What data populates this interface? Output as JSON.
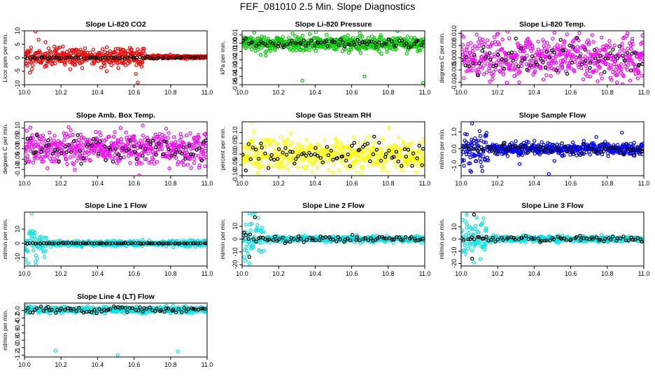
{
  "title": "FEF_081010  2.5 Min. Slope Diagnostics",
  "chart_data": [
    {
      "type": "scatter",
      "title": "Slope Li-820 CO2",
      "ylabel": "Licor ppm per min.",
      "xlim": [
        10.0,
        11.0
      ],
      "ylim": [
        -10,
        10
      ],
      "xticks": [
        10.0,
        10.2,
        10.4,
        10.6,
        10.8,
        11.0
      ],
      "xtick_labels": [
        "10.0",
        "10.2",
        "10.4",
        "10.6",
        "10.8",
        "11.0"
      ],
      "yticks": [
        -10,
        -5,
        0,
        5,
        10
      ],
      "ytick_labels": [
        "-10",
        "-5",
        "0",
        "5",
        "10"
      ],
      "series": [
        {
          "name": "all",
          "color": "#ff0000",
          "seed": 11,
          "n": 520,
          "x_range": [
            10.0,
            11.0
          ],
          "center": 0.3,
          "spread": 1.8,
          "scatter_until": 10.66,
          "tail_spread": 0.3,
          "outliers": [
            [
              10.06,
              9.8
            ],
            [
              10.62,
              -9.2
            ],
            [
              10.61,
              -6.0
            ],
            [
              10.45,
              -5.0
            ],
            [
              10.03,
              -5.5
            ]
          ]
        },
        {
          "name": "selected",
          "color": "#000000",
          "seed": 12,
          "n": 75,
          "x_range": [
            10.0,
            11.0
          ],
          "center": 0.0,
          "spread": 0.25
        }
      ]
    },
    {
      "type": "scatter",
      "title": "Slope Li-820 Pressure",
      "ylabel": "kPa per min.",
      "xlim": [
        10.0,
        11.0
      ],
      "ylim": [
        -0.05,
        0.015
      ],
      "xticks": [
        10.0,
        10.2,
        10.4,
        10.6,
        10.8,
        11.0
      ],
      "xtick_labels": [
        "10.0",
        "10.2",
        "10.4",
        "10.6",
        "10.8",
        "11.0"
      ],
      "yticks": [
        -0.05,
        -0.04,
        -0.03,
        -0.02,
        -0.01,
        0.0,
        0.01
      ],
      "ytick_labels": [
        "-0.05",
        "-0.04",
        "-0.03",
        "-0.02",
        "-0.01",
        "0.00",
        "0.01"
      ],
      "series": [
        {
          "name": "all",
          "color": "#00cc00",
          "seed": 21,
          "n": 520,
          "x_range": [
            10.0,
            11.0
          ],
          "center": 0.0,
          "spread": 0.0045,
          "outliers": [
            [
              10.33,
              -0.045
            ],
            [
              10.67,
              -0.04
            ],
            [
              10.99,
              -0.048
            ],
            [
              10.13,
              -0.015
            ]
          ]
        },
        {
          "name": "selected",
          "color": "#000000",
          "seed": 22,
          "n": 75,
          "x_range": [
            10.0,
            11.0
          ],
          "center": 0.0,
          "spread": 0.0025
        }
      ]
    },
    {
      "type": "scatter",
      "title": "Slope Li-820 Temp.",
      "ylabel": "degrees C per min.",
      "xlim": [
        10.0,
        11.0
      ],
      "ylim": [
        -0.011,
        0.011
      ],
      "xticks": [
        10.0,
        10.2,
        10.4,
        10.6,
        10.8,
        11.0
      ],
      "xtick_labels": [
        "10.0",
        "10.2",
        "10.4",
        "10.6",
        "10.8",
        "11.0"
      ],
      "yticks": [
        -0.01,
        -0.005,
        0.0,
        0.005,
        0.01
      ],
      "ytick_labels": [
        "-0.010",
        "-0.005",
        "0.000",
        "0.005",
        "0.010"
      ],
      "series": [
        {
          "name": "all",
          "color": "#ff00ff",
          "seed": 31,
          "n": 520,
          "x_range": [
            10.0,
            11.0
          ],
          "center": 0.0,
          "spread": 0.0045,
          "outliers": []
        },
        {
          "name": "selected",
          "color": "#000000",
          "seed": 32,
          "n": 75,
          "x_range": [
            10.0,
            11.0
          ],
          "center": 0.0,
          "spread": 0.004
        }
      ]
    },
    {
      "type": "scatter",
      "title": "Slope Amb. Box Temp.",
      "ylabel": "degrees C per min.",
      "xlim": [
        10.0,
        11.0
      ],
      "ylim": [
        -0.13,
        0.13
      ],
      "xticks": [
        10.0,
        10.2,
        10.4,
        10.6,
        10.8,
        11.0
      ],
      "xtick_labels": [
        "10.0",
        "10.2",
        "10.4",
        "10.6",
        "10.8",
        "11.0"
      ],
      "yticks": [
        -0.1,
        -0.05,
        0.0,
        0.05,
        0.1
      ],
      "ytick_labels": [
        "-0.10",
        "-0.05",
        "0.00",
        "0.05",
        "0.10"
      ],
      "series": [
        {
          "name": "all",
          "color": "#ff00ff",
          "seed": 41,
          "n": 520,
          "x_range": [
            10.0,
            11.0
          ],
          "center": 0.0,
          "spread": 0.04,
          "outliers": []
        },
        {
          "name": "selected",
          "color": "#000000",
          "seed": 42,
          "n": 75,
          "x_range": [
            10.0,
            11.0
          ],
          "center": 0.0,
          "spread": 0.035
        }
      ]
    },
    {
      "type": "scatter",
      "title": "Slope Gas Stream RH",
      "ylabel": "percent per min.",
      "xlim": [
        10.0,
        11.0
      ],
      "ylim": [
        -0.1,
        0.15
      ],
      "xticks": [
        10.0,
        10.2,
        10.4,
        10.6,
        10.8,
        11.0
      ],
      "xtick_labels": [
        "10.0",
        "10.2",
        "10.4",
        "10.6",
        "10.8",
        "11.0"
      ],
      "yticks": [
        -0.1,
        -0.05,
        0.0,
        0.05,
        0.1
      ],
      "ytick_labels": [
        "-0.10",
        "-0.05",
        "0.00",
        "0.05",
        "0.10"
      ],
      "series": [
        {
          "name": "all",
          "color": "#ffff00",
          "seed": 51,
          "n": 520,
          "x_range": [
            10.0,
            11.0
          ],
          "center": 0.0,
          "spread": 0.035,
          "outliers": [
            [
              10.05,
              0.145
            ]
          ]
        },
        {
          "name": "selected",
          "color": "#000000",
          "seed": 52,
          "n": 75,
          "x_range": [
            10.0,
            11.0
          ],
          "center": 0.0,
          "spread": 0.03
        }
      ]
    },
    {
      "type": "scatter",
      "title": "Slope Sample Flow",
      "ylabel": "ml/min per min.",
      "xlim": [
        10.0,
        11.0
      ],
      "ylim": [
        -1.6,
        1.6
      ],
      "xticks": [
        10.0,
        10.2,
        10.4,
        10.6,
        10.8,
        11.0
      ],
      "xtick_labels": [
        "10.0",
        "10.2",
        "10.4",
        "10.6",
        "10.8",
        "11.0"
      ],
      "yticks": [
        -1.0,
        0.0,
        1.0
      ],
      "ytick_labels": [
        "-1.0",
        "0.0",
        "1.0"
      ],
      "series": [
        {
          "name": "all",
          "color": "#0000ff",
          "seed": 61,
          "n": 520,
          "x_range": [
            10.0,
            11.0
          ],
          "center": 0.0,
          "spread": 0.18,
          "scatter_until": 10.15,
          "early_spread": 0.6,
          "outliers": [
            [
              10.06,
              1.5
            ],
            [
              10.05,
              -1.3
            ],
            [
              10.48,
              -1.5
            ],
            [
              10.32,
              -0.9
            ],
            [
              10.88,
              0.95
            ],
            [
              10.74,
              0.7
            ]
          ]
        },
        {
          "name": "selected",
          "color": "#000000",
          "seed": 62,
          "n": 75,
          "x_range": [
            10.0,
            11.0
          ],
          "center": 0.0,
          "spread": 0.15
        }
      ]
    },
    {
      "type": "scatter",
      "title": "Slope Line 1 Flow",
      "ylabel": "ml/min per min.",
      "xlim": [
        10.0,
        11.0
      ],
      "ylim": [
        -16,
        22
      ],
      "xticks": [
        10.0,
        10.2,
        10.4,
        10.6,
        10.8,
        11.0
      ],
      "xtick_labels": [
        "10.0",
        "10.2",
        "10.4",
        "10.6",
        "10.8",
        "11.0"
      ],
      "yticks": [
        -10,
        0,
        10
      ],
      "ytick_labels": [
        "-10",
        "0",
        "10"
      ],
      "series": [
        {
          "name": "all",
          "color": "#00e5e5",
          "seed": 71,
          "n": 480,
          "x_range": [
            10.0,
            11.0
          ],
          "center": 0.0,
          "spread": 0.9,
          "scatter_until": 10.12,
          "early_spread": 6.0,
          "outliers": [
            [
              10.04,
              21
            ],
            [
              10.02,
              -14
            ],
            [
              10.06,
              -13
            ]
          ]
        },
        {
          "name": "selected",
          "color": "#000000",
          "seed": 72,
          "n": 80,
          "x_range": [
            10.0,
            11.0
          ],
          "center": 0.0,
          "spread": 0.15
        }
      ]
    },
    {
      "type": "scatter",
      "title": "Slope Line 2 Flow",
      "ylabel": "ml/min per min.",
      "xlim": [
        10.0,
        11.0
      ],
      "ylim": [
        -21,
        21
      ],
      "xticks": [
        10.0,
        10.2,
        10.4,
        10.6,
        10.8,
        11.0
      ],
      "xtick_labels": [
        "10.0",
        "10.2",
        "10.4",
        "10.6",
        "10.8",
        "11.0"
      ],
      "yticks": [
        -20,
        -10,
        0,
        10
      ],
      "ytick_labels": [
        "-20",
        "-10",
        "0",
        "10"
      ],
      "series": [
        {
          "name": "all",
          "color": "#00e5e5",
          "seed": 81,
          "n": 480,
          "x_range": [
            10.0,
            11.0
          ],
          "center": 0.0,
          "spread": 1.1,
          "scatter_until": 10.12,
          "early_spread": 7.0,
          "outliers": [
            [
              10.04,
              20
            ],
            [
              10.06,
              19
            ],
            [
              10.04,
              -19
            ]
          ]
        },
        {
          "name": "selected",
          "color": "#000000",
          "seed": 82,
          "n": 75,
          "x_range": [
            10.0,
            11.0
          ],
          "center": 0.0,
          "spread": 1.3,
          "outliers": [
            [
              10.07,
              17
            ],
            [
              10.04,
              -14
            ],
            [
              10.01,
              5
            ]
          ]
        }
      ]
    },
    {
      "type": "scatter",
      "title": "Slope Line 3 Flow",
      "ylabel": "ml/min per min.",
      "xlim": [
        10.0,
        11.0
      ],
      "ylim": [
        -22,
        22
      ],
      "xticks": [
        10.0,
        10.2,
        10.4,
        10.6,
        10.8,
        11.0
      ],
      "xtick_labels": [
        "10.0",
        "10.2",
        "10.4",
        "10.6",
        "10.8",
        "11.0"
      ],
      "yticks": [
        -20,
        -10,
        0,
        10
      ],
      "ytick_labels": [
        "-20",
        "-10",
        "0",
        "10"
      ],
      "series": [
        {
          "name": "all",
          "color": "#00e5e5",
          "seed": 91,
          "n": 480,
          "x_range": [
            10.0,
            11.0
          ],
          "center": 0.0,
          "spread": 1.2,
          "scatter_until": 10.14,
          "early_spread": 7.5,
          "outliers": [
            [
              10.03,
              20
            ],
            [
              10.07,
              -19
            ]
          ]
        },
        {
          "name": "selected",
          "color": "#000000",
          "seed": 92,
          "n": 75,
          "x_range": [
            10.0,
            11.0
          ],
          "center": 0.0,
          "spread": 1.2,
          "outliers": [
            [
              10.07,
              20
            ],
            [
              10.06,
              -16
            ]
          ]
        }
      ]
    },
    {
      "type": "scatter",
      "title": "Slope Line 4 (LT) Flow",
      "ylabel": "ml/min per min.",
      "xlim": [
        10.0,
        11.0
      ],
      "ylim": [
        -1.25,
        0.2
      ],
      "xticks": [
        10.0,
        10.2,
        10.4,
        10.6,
        10.8,
        11.0
      ],
      "xtick_labels": [
        "10.0",
        "10.2",
        "10.4",
        "10.6",
        "10.8",
        "11.0"
      ],
      "yticks": [
        -1.2,
        -1.0,
        -0.8,
        -0.6,
        -0.4,
        -0.2,
        0.0
      ],
      "ytick_labels": [
        "-1.2",
        "-1.0",
        "-0.8",
        "-0.6",
        "-0.4",
        "-0.2",
        "0.0"
      ],
      "series": [
        {
          "name": "all",
          "color": "#00e5e5",
          "seed": 101,
          "n": 480,
          "x_range": [
            10.0,
            11.0
          ],
          "center": 0.02,
          "spread": 0.04,
          "outliers": [
            [
              10.17,
              -1.08
            ],
            [
              10.51,
              -1.2
            ],
            [
              10.84,
              -1.1
            ]
          ]
        },
        {
          "name": "selected",
          "color": "#000000",
          "seed": 102,
          "n": 75,
          "x_range": [
            10.0,
            11.0
          ],
          "center": 0.02,
          "spread": 0.04
        }
      ]
    }
  ]
}
